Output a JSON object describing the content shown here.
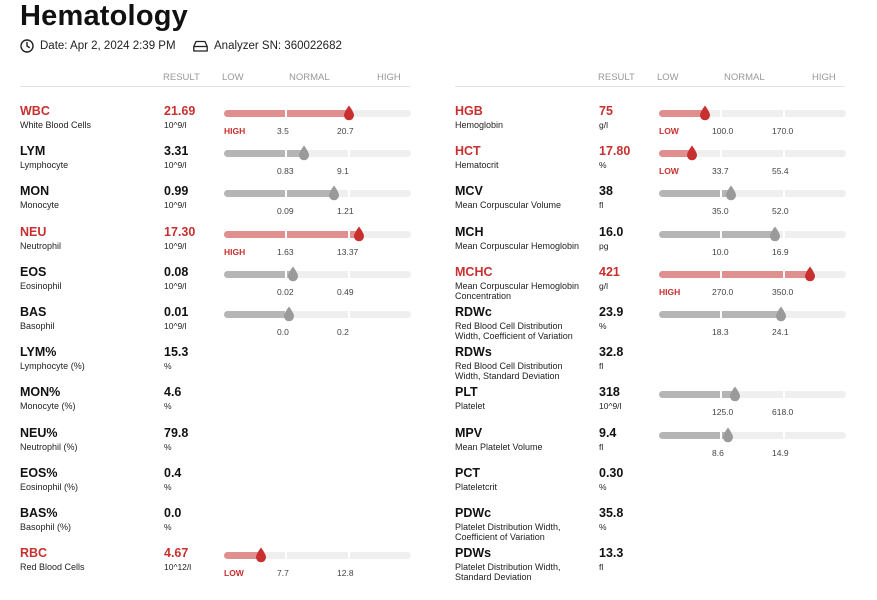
{
  "page": {
    "title": "Hematology",
    "date": "Date: Apr 2, 2024 2:39 PM",
    "analyzer": "Analyzer SN: 360022682"
  },
  "columns_header": {
    "result": "RESULT",
    "low": "LOW",
    "normal": "NORMAL",
    "high": "HIGH"
  },
  "colors": {
    "abnormal": "#c8302f",
    "abnormal_bar": "#e08f8f",
    "normal_bar": "#b5b5b5",
    "track": "#efefef"
  },
  "left": [
    {
      "abbr": "WBC",
      "name": "White Blood Cells",
      "value": "21.69",
      "unit": "10^9/l",
      "low": "3.5",
      "high": "20.7",
      "flag": "HIGH",
      "abnormal": true,
      "has_bar": true,
      "level": 0.67
    },
    {
      "abbr": "LYM",
      "name": "Lymphocyte",
      "value": "3.31",
      "unit": "10^9/l",
      "low": "0.83",
      "high": "9.1",
      "flag": "",
      "abnormal": false,
      "has_bar": true,
      "level": 0.43
    },
    {
      "abbr": "MON",
      "name": "Monocyte",
      "value": "0.99",
      "unit": "10^9/l",
      "low": "0.09",
      "high": "1.21",
      "flag": "",
      "abnormal": false,
      "has_bar": true,
      "level": 0.59
    },
    {
      "abbr": "NEU",
      "name": "Neutrophil",
      "value": "17.30",
      "unit": "10^9/l",
      "low": "1.63",
      "high": "13.37",
      "flag": "HIGH",
      "abnormal": true,
      "has_bar": true,
      "level": 0.72
    },
    {
      "abbr": "EOS",
      "name": "Eosinophil",
      "value": "0.08",
      "unit": "10^9/l",
      "low": "0.02",
      "high": "0.49",
      "flag": "",
      "abnormal": false,
      "has_bar": true,
      "level": 0.37
    },
    {
      "abbr": "BAS",
      "name": "Basophil",
      "value": "0.01",
      "unit": "10^9/l",
      "low": "0.0",
      "high": "0.2",
      "flag": "",
      "abnormal": false,
      "has_bar": true,
      "level": 0.345
    },
    {
      "abbr": "LYM%",
      "name": "Lymphocyte (%)",
      "value": "15.3",
      "unit": "%",
      "abnormal": false,
      "has_bar": false
    },
    {
      "abbr": "MON%",
      "name": "Monocyte (%)",
      "value": "4.6",
      "unit": "%",
      "abnormal": false,
      "has_bar": false
    },
    {
      "abbr": "NEU%",
      "name": "Neutrophil (%)",
      "value": "79.8",
      "unit": "%",
      "abnormal": false,
      "has_bar": false
    },
    {
      "abbr": "EOS%",
      "name": "Eosinophil (%)",
      "value": "0.4",
      "unit": "%",
      "abnormal": false,
      "has_bar": false
    },
    {
      "abbr": "BAS%",
      "name": "Basophil (%)",
      "value": "0.0",
      "unit": "%",
      "abnormal": false,
      "has_bar": false
    },
    {
      "abbr": "RBC",
      "name": "Red Blood Cells",
      "value": "4.67",
      "unit": "10^12/l",
      "low": "7.7",
      "high": "12.8",
      "flag": "LOW",
      "abnormal": true,
      "has_bar": true,
      "level": 0.2
    }
  ],
  "right": [
    {
      "abbr": "HGB",
      "name": "Hemoglobin",
      "value": "75",
      "unit": "g/l",
      "low": "100.0",
      "high": "170.0",
      "flag": "LOW",
      "abnormal": true,
      "has_bar": true,
      "level": 0.245
    },
    {
      "abbr": "HCT",
      "name": "Hematocrit",
      "value": "17.80",
      "unit": "%",
      "low": "33.7",
      "high": "55.4",
      "flag": "LOW",
      "abnormal": true,
      "has_bar": true,
      "level": 0.175
    },
    {
      "abbr": "MCV",
      "name": "Mean Corpuscular Volume",
      "value": "38",
      "unit": "fl",
      "low": "35.0",
      "high": "52.0",
      "flag": "",
      "abnormal": false,
      "has_bar": true,
      "level": 0.385
    },
    {
      "abbr": "MCH",
      "name": "Mean Corpuscular Hemoglobin",
      "value": "16.0",
      "unit": "pg",
      "low": "10.0",
      "high": "16.9",
      "flag": "",
      "abnormal": false,
      "has_bar": true,
      "level": 0.62
    },
    {
      "abbr": "MCHC",
      "name": "Mean Corpuscular Hemoglobin Concentration",
      "value": "421",
      "unit": "g/l",
      "low": "270.0",
      "high": "350.0",
      "flag": "HIGH",
      "abnormal": true,
      "has_bar": true,
      "level": 0.81
    },
    {
      "abbr": "RDWc",
      "name": "Red Blood Cell Distribution Width, Coefficient of Variation",
      "value": "23.9",
      "unit": "%",
      "low": "18.3",
      "high": "24.1",
      "flag": "",
      "abnormal": false,
      "has_bar": true,
      "level": 0.65
    },
    {
      "abbr": "RDWs",
      "name": "Red Blood Cell Distribution Width, Standard Deviation",
      "value": "32.8",
      "unit": "fl",
      "abnormal": false,
      "has_bar": false
    },
    {
      "abbr": "PLT",
      "name": "Platelet",
      "value": "318",
      "unit": "10^9/l",
      "low": "125.0",
      "high": "618.0",
      "flag": "",
      "abnormal": false,
      "has_bar": true,
      "level": 0.405
    },
    {
      "abbr": "MPV",
      "name": "Mean Platelet Volume",
      "value": "9.4",
      "unit": "fl",
      "low": "8.6",
      "high": "14.9",
      "flag": "",
      "abnormal": false,
      "has_bar": true,
      "level": 0.37
    },
    {
      "abbr": "PCT",
      "name": "Plateletcrit",
      "value": "0.30",
      "unit": "%",
      "abnormal": false,
      "has_bar": false
    },
    {
      "abbr": "PDWc",
      "name": "Platelet Distribution Width, Coefficient of Variation",
      "value": "35.8",
      "unit": "%",
      "abnormal": false,
      "has_bar": false
    },
    {
      "abbr": "PDWs",
      "name": "Platelet Distribution Width, Standard Deviation",
      "value": "13.3",
      "unit": "fl",
      "abnormal": false,
      "has_bar": false
    }
  ]
}
